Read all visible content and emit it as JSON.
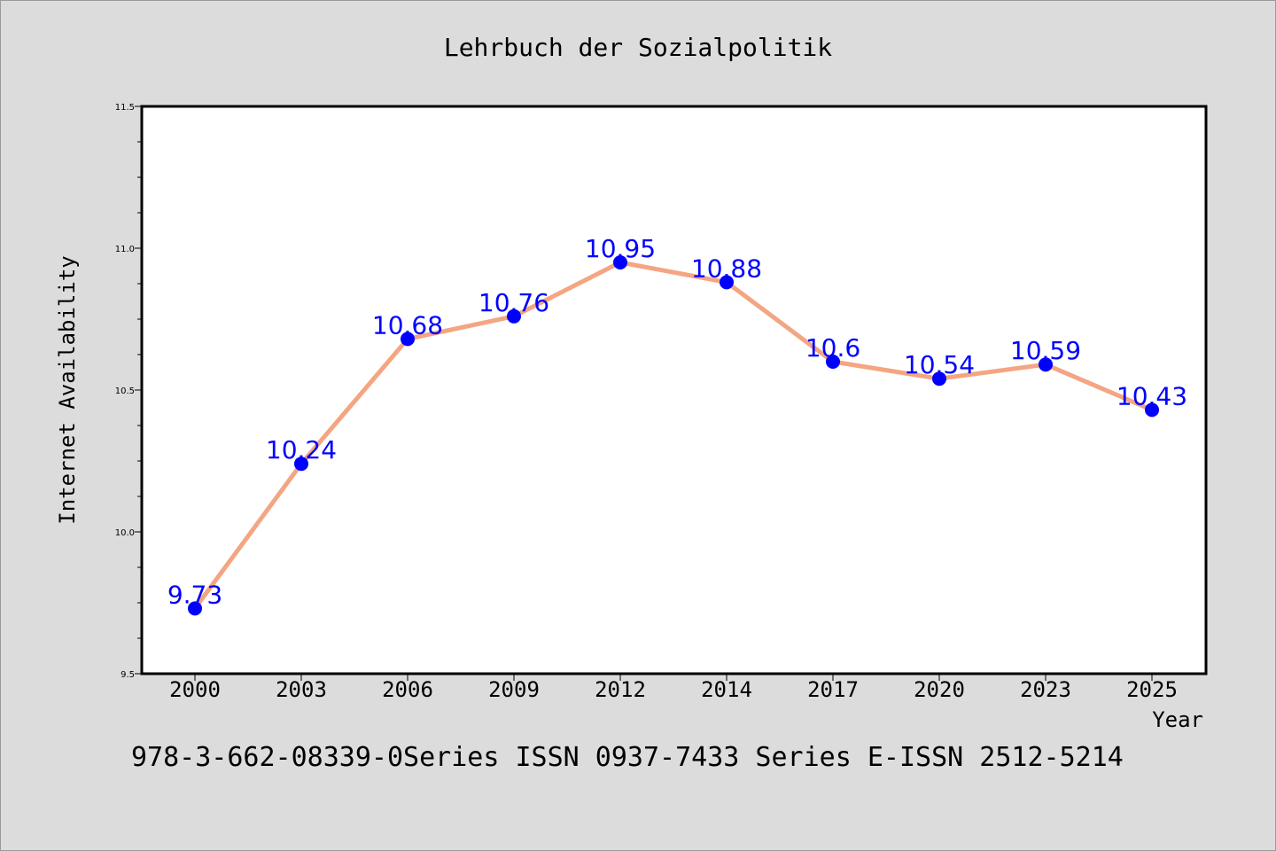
{
  "chart_data": {
    "type": "line",
    "title": "Lehrbuch der Sozialpolitik",
    "xlabel": "Year",
    "ylabel": "Internet Availability",
    "categories": [
      "2000",
      "2003",
      "2006",
      "2009",
      "2012",
      "2014",
      "2017",
      "2020",
      "2023",
      "2025"
    ],
    "values": [
      9.73,
      10.24,
      10.68,
      10.76,
      10.95,
      10.88,
      10.6,
      10.54,
      10.59,
      10.43
    ],
    "data_labels": [
      "9.73",
      "10.24",
      "10.68",
      "10.76",
      "10.95",
      "10.88",
      "10.6",
      "10.54",
      "10.59",
      "10.43"
    ],
    "ylim": [
      9.5,
      11.5
    ],
    "y_ticks": [
      "9.5",
      "10.0",
      "10.5",
      "11.0",
      "11.5"
    ],
    "grid": false,
    "line_color": "#f4a582",
    "marker_color": "#0000ff",
    "label_color": "#0000ff"
  },
  "footer": {
    "text": "978-3-662-08339-0Series ISSN 0937-7433 Series E-ISSN 2512-5214"
  },
  "colors": {
    "background": "#dcdcdc",
    "plot_background": "#ffffff",
    "axis": "#000000"
  }
}
